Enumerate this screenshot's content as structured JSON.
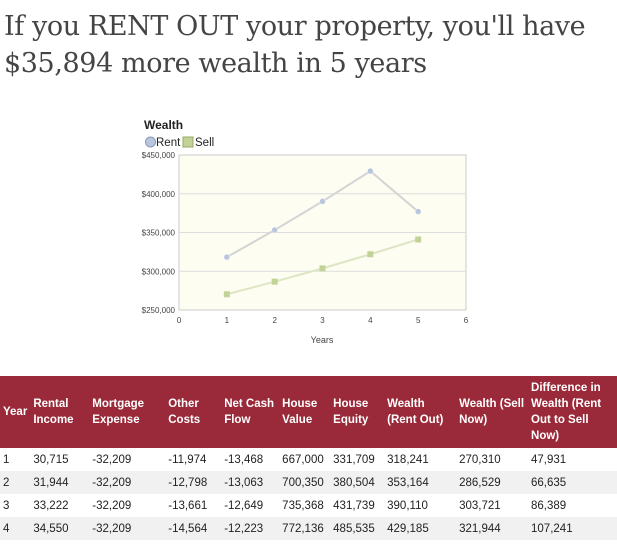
{
  "headline": "If you RENT OUT your property, you'll have $35,894 more wealth in 5 years",
  "chart_data": {
    "type": "line",
    "title": "Wealth",
    "xlabel": "Years",
    "ylabel": "",
    "x_ticks": [
      "0",
      "1",
      "2",
      "3",
      "4",
      "5",
      "6"
    ],
    "y_ticks": [
      "$450,000",
      "$400,000",
      "$350,000",
      "$300,000",
      "$250,000"
    ],
    "xlim": [
      0,
      6
    ],
    "ylim": [
      250000,
      450000
    ],
    "legend_position": "top-left",
    "grid": true,
    "series": [
      {
        "name": "Rent",
        "color": "#b8c7dd",
        "line_color": "#d4d4d4",
        "marker": "circle",
        "x": [
          1,
          2,
          3,
          4,
          5
        ],
        "values": [
          318241,
          353164,
          390110,
          429185,
          377000
        ]
      },
      {
        "name": "Sell",
        "color": "#c3d398",
        "line_color": "#dde6c3",
        "marker": "square",
        "x": [
          1,
          2,
          3,
          4,
          5
        ],
        "values": [
          270310,
          286529,
          303721,
          321944,
          341000
        ]
      }
    ]
  },
  "table": {
    "headers": [
      "Year",
      "Rental Income",
      "Mortgage Expense",
      "Other Costs",
      "Net Cash Flow",
      "House Value",
      "House Equity",
      "Wealth (Rent Out)",
      "Wealth (Sell Now)",
      "Difference in Wealth (Rent Out to Sell Now)"
    ],
    "rows": [
      [
        "1",
        "30,715",
        "-32,209",
        "-11,974",
        "-13,468",
        "667,000",
        "331,709",
        "318,241",
        "270,310",
        "47,931"
      ],
      [
        "2",
        "31,944",
        "-32,209",
        "-12,798",
        "-13,063",
        "700,350",
        "380,504",
        "353,164",
        "286,529",
        "66,635"
      ],
      [
        "3",
        "33,222",
        "-32,209",
        "-13,661",
        "-12,649",
        "735,368",
        "431,739",
        "390,110",
        "303,721",
        "86,389"
      ],
      [
        "4",
        "34,550",
        "-32,209",
        "-14,564",
        "-12,223",
        "772,136",
        "485,535",
        "429,185",
        "321,944",
        "107,241"
      ]
    ]
  },
  "colors": {
    "header_bg": "#9a2a39",
    "plot_bg": "#fdfdf2",
    "stripe": "#f1f1f1"
  }
}
